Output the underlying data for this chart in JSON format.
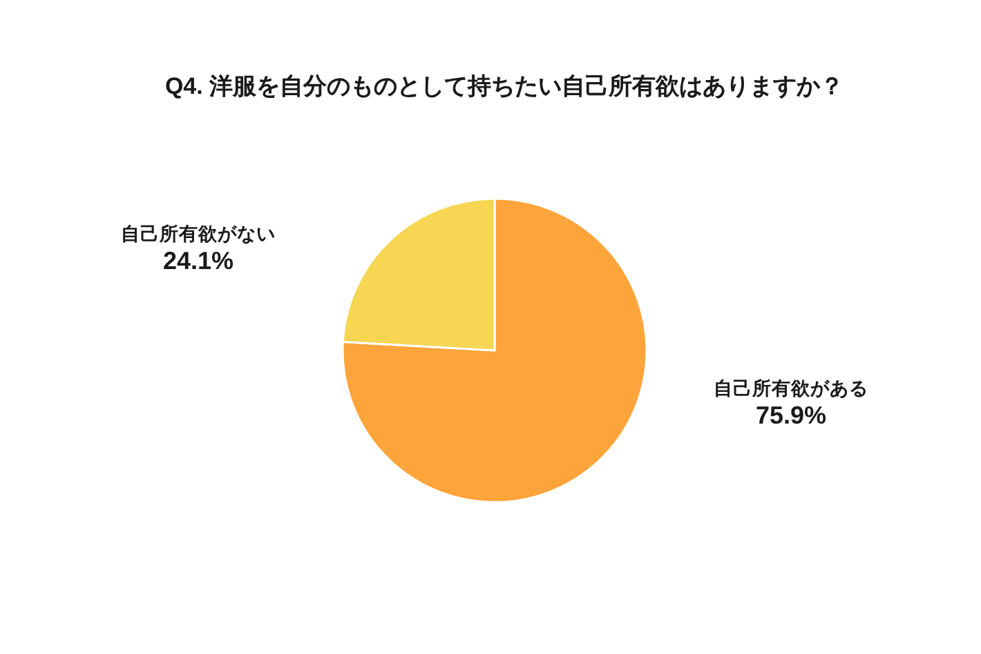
{
  "chart_data": {
    "type": "pie",
    "title": "Q4. 洋服を自分のものとして持ちたい自己所有欲はありますか？",
    "categories": [
      "自己所有欲がある",
      "自己所有欲がない"
    ],
    "values": [
      75.9,
      24.1
    ],
    "value_labels": [
      "75.9%",
      "24.1%"
    ],
    "colors": [
      "#fda43a",
      "#f6d653"
    ]
  }
}
